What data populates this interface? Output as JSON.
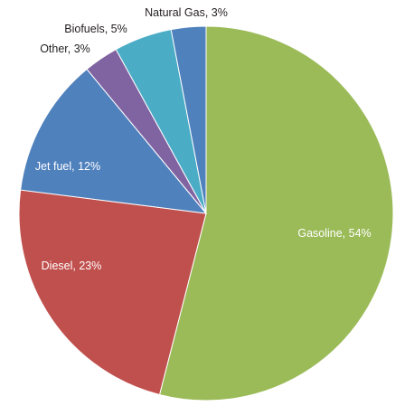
{
  "chart_data": {
    "type": "pie",
    "title": "",
    "slices": [
      {
        "label": "Gasoline, 54%",
        "value": 54,
        "color": "#9bbb59",
        "label_color": "#ffffff"
      },
      {
        "label": "Diesel, 23%",
        "value": 23,
        "color": "#c0504d",
        "label_color": "#ffffff"
      },
      {
        "label": "Jet fuel, 12%",
        "value": 12,
        "color": "#4f81bd",
        "label_color": "#ffffff"
      },
      {
        "label": "Other, 3%",
        "value": 3,
        "color": "#8064a2",
        "label_color": "#231f20"
      },
      {
        "label": "Biofuels, 5%",
        "value": 5,
        "color": "#4bacc6",
        "label_color": "#231f20"
      },
      {
        "label": "Natural Gas, 3%",
        "value": 3,
        "color": "#4f81bd",
        "label_color": "#231f20"
      }
    ]
  }
}
